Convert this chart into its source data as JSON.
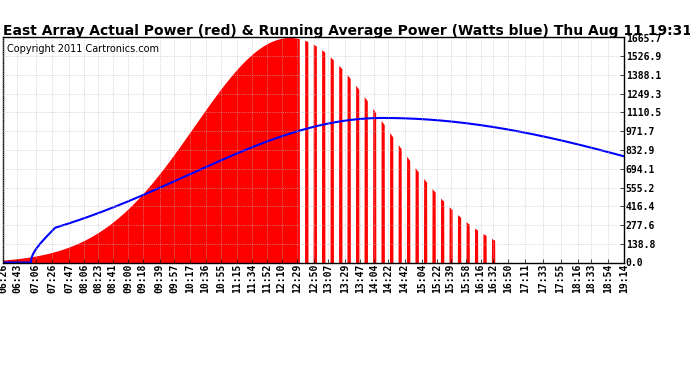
{
  "title": "East Array Actual Power (red) & Running Average Power (Watts blue) Thu Aug 11 19:31",
  "copyright": "Copyright 2011 Cartronics.com",
  "ytick_labels": [
    "0.0",
    "138.8",
    "277.6",
    "416.4",
    "555.2",
    "694.1",
    "832.9",
    "971.7",
    "1110.5",
    "1249.3",
    "1388.1",
    "1526.9",
    "1665.7"
  ],
  "ytick_values": [
    0.0,
    138.8,
    277.6,
    416.4,
    555.2,
    694.1,
    832.9,
    971.7,
    1110.5,
    1249.3,
    1388.1,
    1526.9,
    1665.7
  ],
  "ymax": 1665.7,
  "ymin": 0.0,
  "bg_color": "#ffffff",
  "plot_bg_color": "#ffffff",
  "red_color": "#ff0000",
  "blue_color": "#0000ff",
  "grid_color": "#bbbbbb",
  "title_fontsize": 10,
  "copyright_fontsize": 7,
  "tick_label_fontsize": 7
}
